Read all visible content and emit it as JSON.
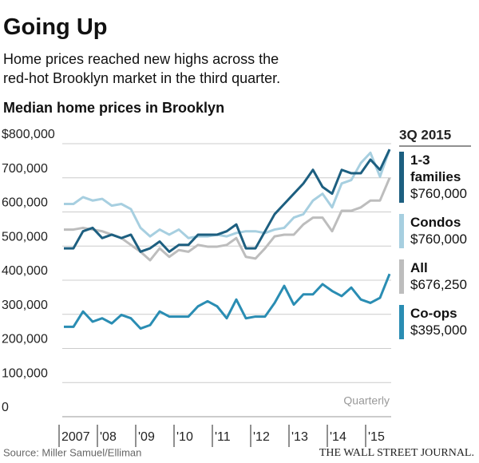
{
  "chart_data": {
    "type": "line",
    "title": "Going Up",
    "subtitle": "Home prices reached new highs across the red-hot Brooklyn market in the third quarter.",
    "chart_title": "Median home prices in Brooklyn",
    "legend_title": "3Q 2015",
    "x_note": "Quarterly",
    "source": "Source: Miller Samuel/Elliman",
    "publisher": "THE WALL STREET JOURNAL.",
    "categories": [
      "2007",
      null,
      null,
      null,
      "'08",
      null,
      null,
      null,
      "'09",
      null,
      null,
      null,
      "'10",
      null,
      null,
      null,
      "'11",
      null,
      null,
      null,
      "'12",
      null,
      null,
      null,
      "'13",
      null,
      null,
      null,
      "'14",
      null,
      null,
      null,
      "'15",
      null,
      null
    ],
    "ylim": [
      0,
      800000
    ],
    "yticks": [
      0,
      {
        "value": 100000,
        "label": "100,000"
      },
      {
        "value": 200000,
        "label": "200,000"
      },
      {
        "value": 300000,
        "label": "300,000"
      },
      {
        "value": 400000,
        "label": "400,000"
      },
      {
        "value": 500000,
        "label": "500,000"
      },
      {
        "value": 600000,
        "label": "600,000"
      },
      {
        "value": 700000,
        "label": "700,000"
      },
      {
        "value": 800000,
        "label": "$800,000"
      }
    ],
    "grid": true,
    "series": [
      {
        "name": "1-3 families",
        "color": "#1d5f80",
        "values": [
          470000,
          470000,
          520000,
          530000,
          500000,
          510000,
          500000,
          510000,
          460000,
          470000,
          490000,
          460000,
          480000,
          480000,
          510000,
          510000,
          510000,
          520000,
          540000,
          470000,
          470000,
          520000,
          570000,
          600000,
          630000,
          660000,
          700000,
          650000,
          630000,
          700000,
          690000,
          690000,
          730000,
          700000,
          760000
        ],
        "value_labels": [
          null,
          null,
          null,
          null,
          null,
          null,
          null,
          null,
          null,
          null,
          null,
          null,
          null,
          null,
          null,
          null,
          null,
          null,
          null,
          null,
          null,
          null,
          null,
          null,
          null,
          null,
          null,
          null,
          null,
          null,
          null,
          null,
          null,
          null,
          "$760,000"
        ]
      },
      {
        "name": "Condos",
        "color": "#a7cfe0",
        "values": [
          600000,
          600000,
          620000,
          610000,
          615000,
          595000,
          600000,
          585000,
          530000,
          505000,
          525000,
          510000,
          525000,
          500000,
          505000,
          505000,
          510000,
          505000,
          515000,
          520000,
          520000,
          515000,
          525000,
          530000,
          560000,
          570000,
          610000,
          630000,
          590000,
          660000,
          670000,
          720000,
          750000,
          680000,
          760000
        ],
        "value_labels": [
          null,
          null,
          null,
          null,
          null,
          null,
          null,
          null,
          null,
          null,
          null,
          null,
          null,
          null,
          null,
          null,
          null,
          null,
          null,
          null,
          null,
          null,
          null,
          null,
          null,
          null,
          null,
          null,
          null,
          null,
          null,
          null,
          null,
          null,
          "$760,000"
        ]
      },
      {
        "name": "All",
        "color": "#bdbdbd",
        "values": [
          525000,
          525000,
          530000,
          525000,
          520000,
          510000,
          500000,
          480000,
          460000,
          435000,
          470000,
          445000,
          465000,
          460000,
          480000,
          475000,
          475000,
          480000,
          500000,
          445000,
          440000,
          470000,
          505000,
          510000,
          510000,
          540000,
          560000,
          560000,
          520000,
          580000,
          580000,
          590000,
          610000,
          610000,
          676250
        ],
        "value_labels": [
          null,
          null,
          null,
          null,
          null,
          null,
          null,
          null,
          null,
          null,
          null,
          null,
          null,
          null,
          null,
          null,
          null,
          null,
          null,
          null,
          null,
          null,
          null,
          null,
          null,
          null,
          null,
          null,
          null,
          null,
          null,
          null,
          null,
          null,
          "$676,250"
        ]
      },
      {
        "name": "Co-ops",
        "color": "#2a8db3",
        "values": [
          240000,
          240000,
          285000,
          255000,
          265000,
          250000,
          275000,
          265000,
          235000,
          245000,
          285000,
          270000,
          270000,
          270000,
          300000,
          315000,
          300000,
          265000,
          320000,
          265000,
          270000,
          270000,
          310000,
          360000,
          305000,
          335000,
          335000,
          365000,
          345000,
          330000,
          355000,
          320000,
          310000,
          325000,
          395000
        ],
        "value_labels": [
          null,
          null,
          null,
          null,
          null,
          null,
          null,
          null,
          null,
          null,
          null,
          null,
          null,
          null,
          null,
          null,
          null,
          null,
          null,
          null,
          null,
          null,
          null,
          null,
          null,
          null,
          null,
          null,
          null,
          null,
          null,
          null,
          null,
          null,
          "$395,000"
        ]
      }
    ]
  }
}
